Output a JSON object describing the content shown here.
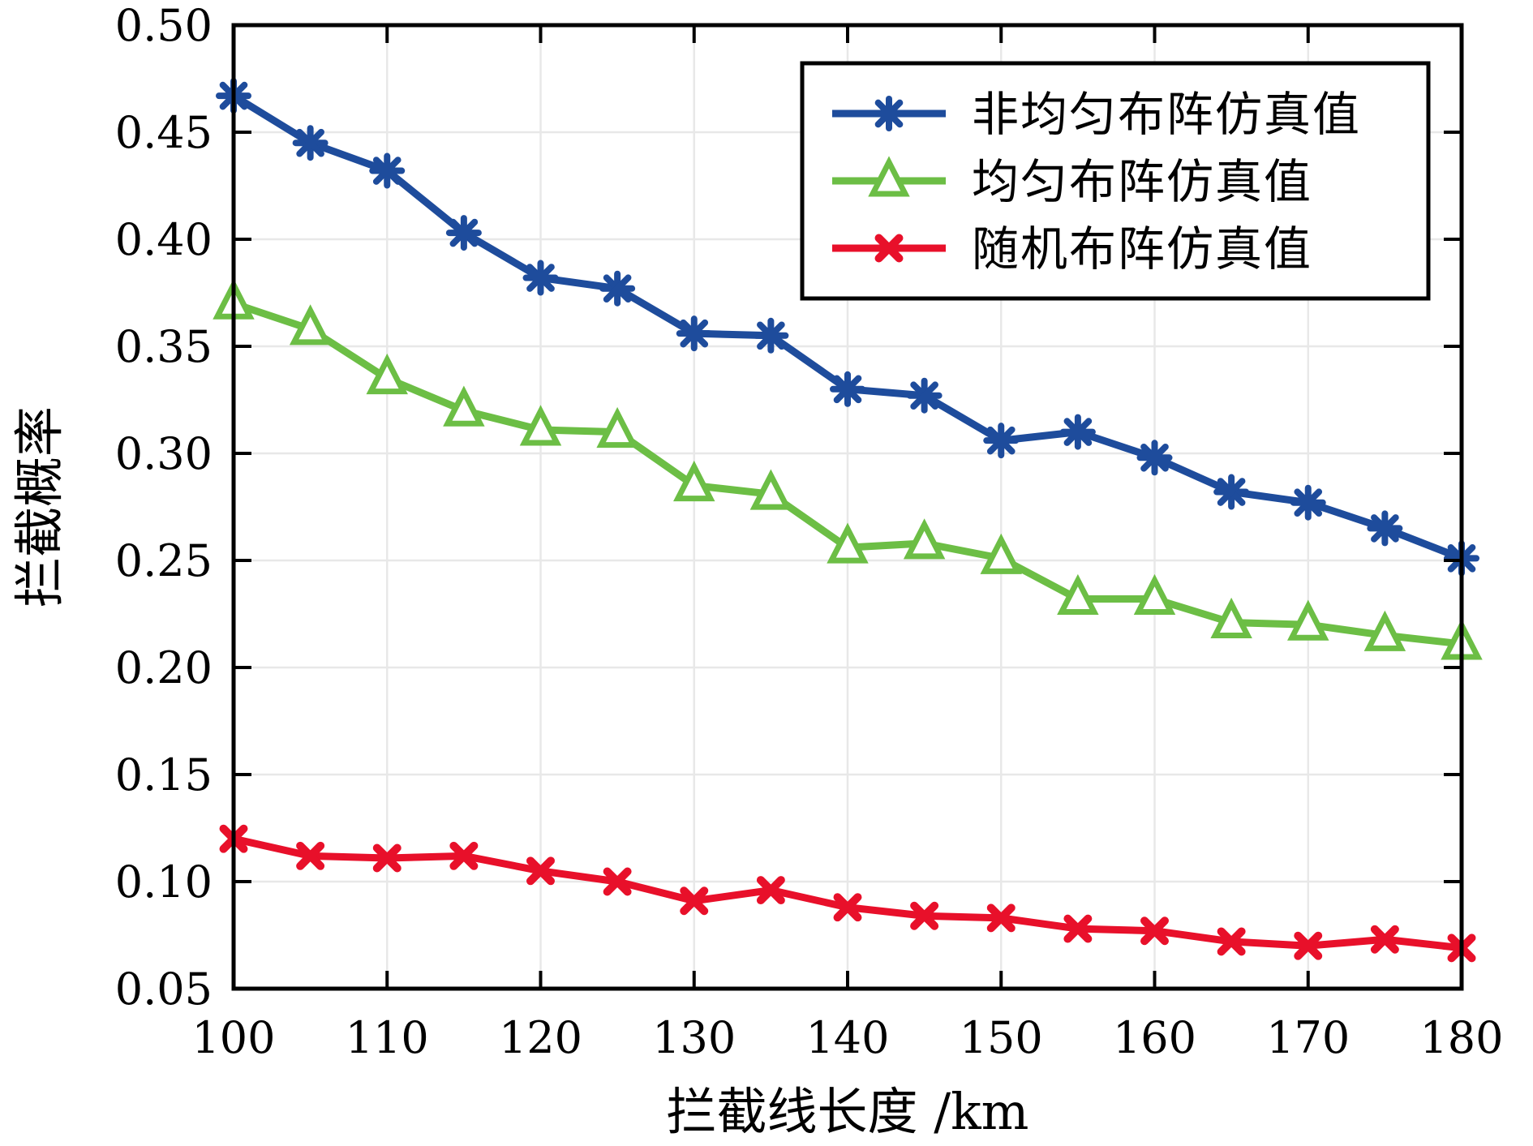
{
  "figure": {
    "background": "#ffffff"
  },
  "chart_data": {
    "type": "line",
    "title": "",
    "xlabel": "拦截线长度 /km",
    "ylabel": "拦截概率",
    "xlim": [
      100,
      180
    ],
    "ylim": [
      0.05,
      0.5
    ],
    "grid": true,
    "legend_position": "top-right",
    "x_ticks": [
      100,
      110,
      120,
      130,
      140,
      150,
      160,
      170,
      180
    ],
    "y_ticks": [
      0.05,
      0.1,
      0.15,
      0.2,
      0.25,
      0.3,
      0.35,
      0.4,
      0.45,
      0.5
    ],
    "y_tick_labels": [
      "0.05",
      "0.10",
      "0.15",
      "0.20",
      "0.25",
      "0.30",
      "0.35",
      "0.40",
      "0.45",
      "0.50"
    ],
    "x": [
      100,
      105,
      110,
      115,
      120,
      125,
      130,
      135,
      140,
      145,
      150,
      155,
      160,
      165,
      170,
      175,
      180
    ],
    "series": [
      {
        "name": "非均匀布阵仿真值",
        "marker": "asterisk",
        "color": "#1e4c9c",
        "values": [
          0.467,
          0.445,
          0.432,
          0.403,
          0.382,
          0.377,
          0.356,
          0.355,
          0.33,
          0.327,
          0.306,
          0.31,
          0.298,
          0.282,
          0.277,
          0.265,
          0.251
        ]
      },
      {
        "name": "均匀布阵仿真值",
        "marker": "triangle-up",
        "color": "#6cbe45",
        "values": [
          0.37,
          0.358,
          0.335,
          0.32,
          0.311,
          0.31,
          0.285,
          0.281,
          0.256,
          0.258,
          0.251,
          0.232,
          0.232,
          0.221,
          0.22,
          0.215,
          0.211
        ]
      },
      {
        "name": "随机布阵仿真值",
        "marker": "x",
        "color": "#e8102a",
        "values": [
          0.12,
          0.112,
          0.111,
          0.112,
          0.105,
          0.1,
          0.091,
          0.096,
          0.088,
          0.084,
          0.083,
          0.078,
          0.077,
          0.072,
          0.07,
          0.073,
          0.069
        ]
      }
    ]
  },
  "colors": {
    "grid": "#e8e8e8",
    "axis": "#000000",
    "background": "#ffffff"
  }
}
